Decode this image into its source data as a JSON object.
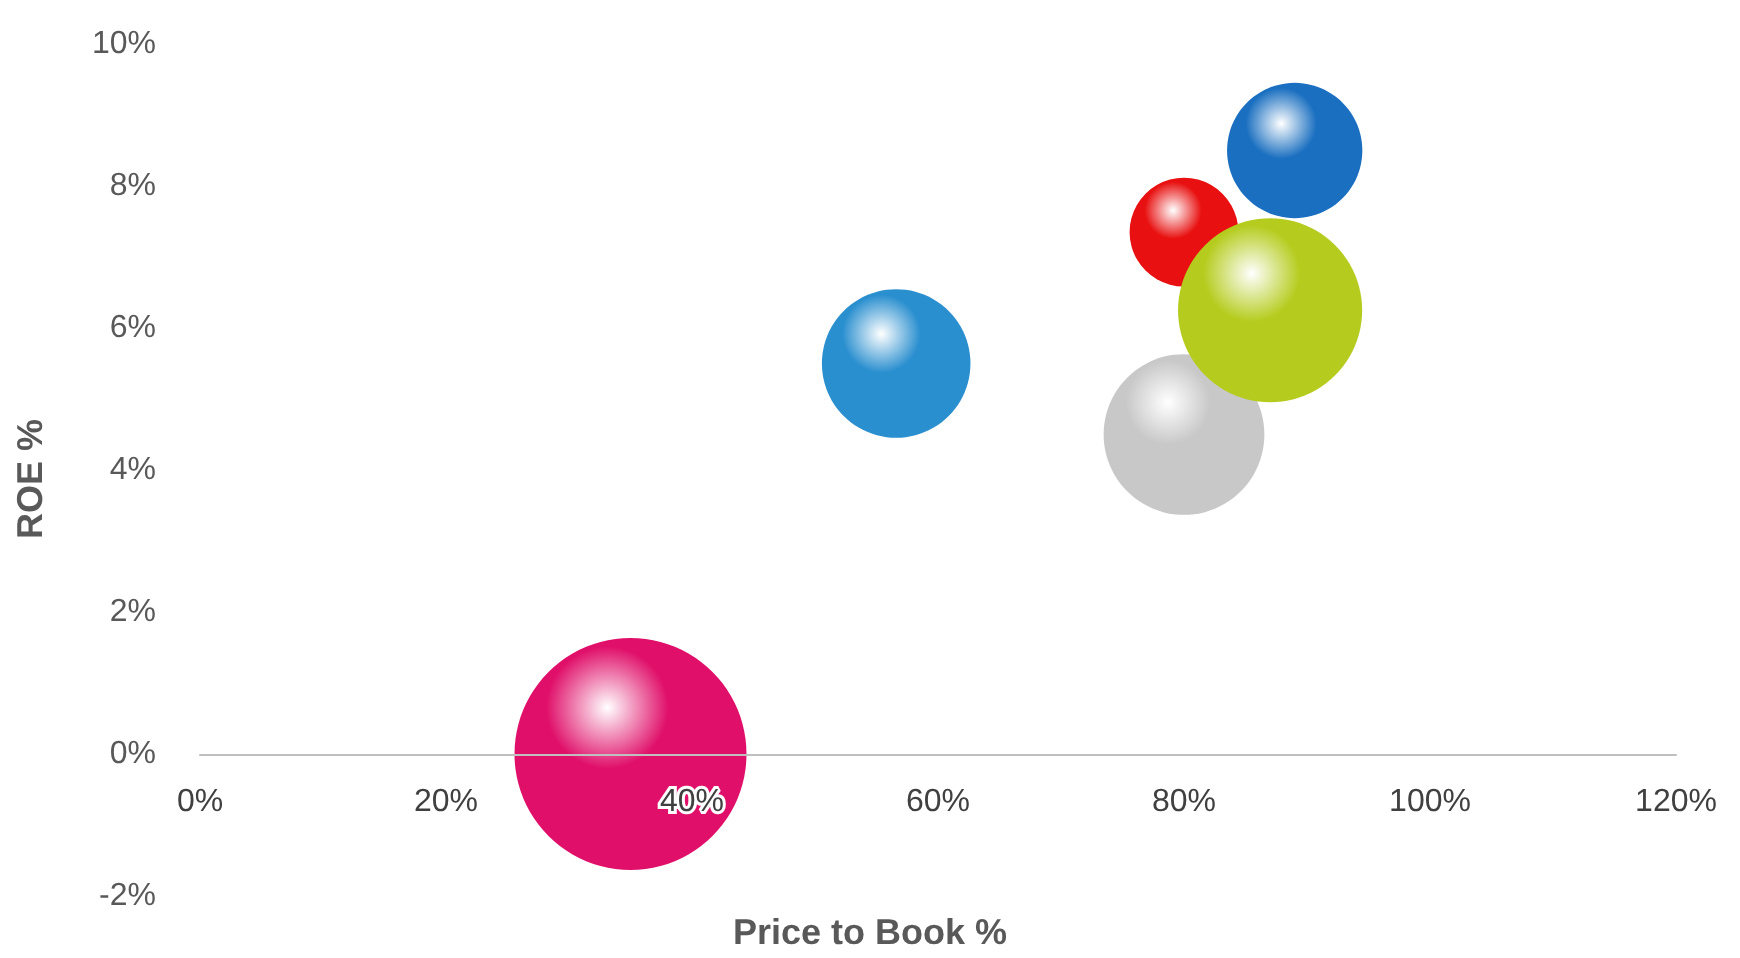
{
  "chart_data": {
    "type": "bubble",
    "xlabel": "Price to Book %",
    "ylabel": "ROE %",
    "x": [
      35,
      56.6,
      80,
      80,
      89,
      87
    ],
    "values": [
      0,
      5.5,
      4.5,
      7.35,
      8.5,
      6.25
    ],
    "sizes": [
      1,
      0.41,
      0.48,
      0.22,
      0.34,
      0.63
    ],
    "colors": [
      "#e0106a",
      "#2a8fcf",
      "#c8c8c8",
      "#e81010",
      "#1a6fc0",
      "#b5cc1e"
    ],
    "xlim": [
      0,
      120
    ],
    "xticks": [
      {
        "value": 0,
        "label": "0%"
      },
      {
        "value": 20,
        "label": "20%"
      },
      {
        "value": 40,
        "label": "40%"
      },
      {
        "value": 60,
        "label": "60%"
      },
      {
        "value": 80,
        "label": "80%"
      },
      {
        "value": 100,
        "label": "100%"
      },
      {
        "value": 120,
        "label": "120%"
      }
    ],
    "ylim": [
      -2,
      10
    ],
    "yticks": [
      {
        "value": -2,
        "label": "-2%"
      },
      {
        "value": 0,
        "label": "0%"
      },
      {
        "value": 2,
        "label": "2%"
      },
      {
        "value": 4,
        "label": "4%"
      },
      {
        "value": 6,
        "label": "6%"
      },
      {
        "value": 8,
        "label": "8%"
      },
      {
        "value": 10,
        "label": "10%"
      }
    ],
    "grid": false
  }
}
